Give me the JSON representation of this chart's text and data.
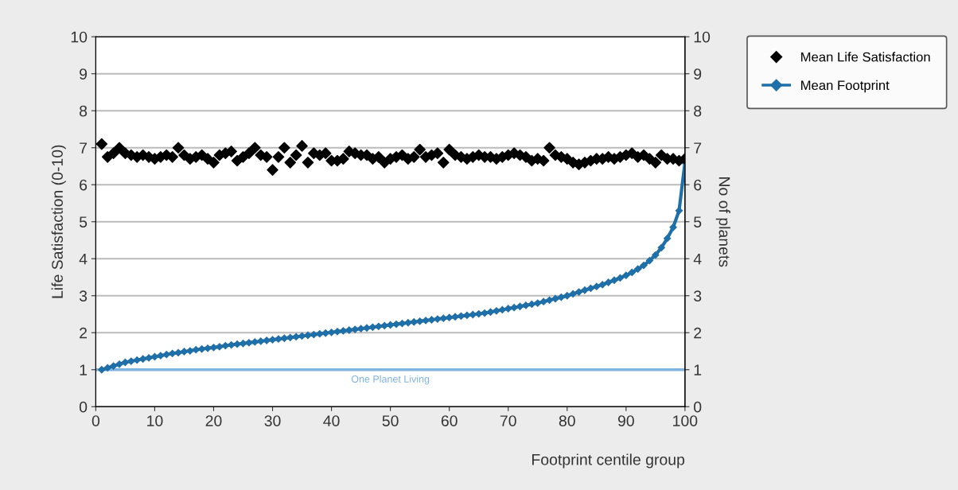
{
  "chart_data": {
    "type": "line",
    "xlabel": "Footprint centile group",
    "ylabel": "Life Satisfaction (0-10)",
    "y2label": "No of planets",
    "x": [
      1,
      2,
      3,
      4,
      5,
      6,
      7,
      8,
      9,
      10,
      11,
      12,
      13,
      14,
      15,
      16,
      17,
      18,
      19,
      20,
      21,
      22,
      23,
      24,
      25,
      26,
      27,
      28,
      29,
      30,
      31,
      32,
      33,
      34,
      35,
      36,
      37,
      38,
      39,
      40,
      41,
      42,
      43,
      44,
      45,
      46,
      47,
      48,
      49,
      50,
      51,
      52,
      53,
      54,
      55,
      56,
      57,
      58,
      59,
      60,
      61,
      62,
      63,
      64,
      65,
      66,
      67,
      68,
      69,
      70,
      71,
      72,
      73,
      74,
      75,
      76,
      77,
      78,
      79,
      80,
      81,
      82,
      83,
      84,
      85,
      86,
      87,
      88,
      89,
      90,
      91,
      92,
      93,
      94,
      95,
      96,
      97,
      98,
      99,
      100
    ],
    "xlim": [
      0,
      100
    ],
    "xticks": [
      0,
      10,
      20,
      30,
      40,
      50,
      60,
      70,
      80,
      90,
      100
    ],
    "ylim": [
      0,
      10
    ],
    "yticks": [
      0,
      1,
      2,
      3,
      4,
      5,
      6,
      7,
      8,
      9,
      10
    ],
    "y2lim": [
      0,
      10
    ],
    "y2ticks": [
      0,
      1,
      2,
      3,
      4,
      5,
      6,
      7,
      8,
      9,
      10
    ],
    "grid": "y",
    "legend": "top right",
    "marker": "diamond",
    "series": [
      {
        "name": "Mean Life Satisfaction",
        "type": "scatter",
        "color": "#000000",
        "values": [
          7.1,
          6.75,
          6.85,
          7.0,
          6.85,
          6.8,
          6.75,
          6.8,
          6.75,
          6.7,
          6.75,
          6.8,
          6.75,
          7.0,
          6.8,
          6.7,
          6.75,
          6.8,
          6.7,
          6.6,
          6.8,
          6.85,
          6.9,
          6.65,
          6.75,
          6.85,
          7.0,
          6.8,
          6.75,
          6.4,
          6.75,
          7.0,
          6.6,
          6.8,
          7.05,
          6.6,
          6.85,
          6.8,
          6.85,
          6.65,
          6.65,
          6.7,
          6.9,
          6.85,
          6.8,
          6.8,
          6.7,
          6.75,
          6.6,
          6.7,
          6.75,
          6.8,
          6.7,
          6.75,
          6.95,
          6.75,
          6.8,
          6.85,
          6.6,
          6.95,
          6.8,
          6.75,
          6.7,
          6.75,
          6.8,
          6.75,
          6.75,
          6.7,
          6.75,
          6.8,
          6.85,
          6.8,
          6.75,
          6.65,
          6.7,
          6.65,
          7.0,
          6.8,
          6.75,
          6.7,
          6.6,
          6.55,
          6.6,
          6.65,
          6.7,
          6.7,
          6.75,
          6.7,
          6.75,
          6.8,
          6.85,
          6.75,
          6.8,
          6.7,
          6.6,
          6.8,
          6.7,
          6.7,
          6.65,
          6.7
        ]
      },
      {
        "name": "Mean Footprint",
        "axis": "y2",
        "color": "#1f6fa8",
        "values": [
          1.0,
          1.05,
          1.1,
          1.15,
          1.2,
          1.23,
          1.26,
          1.29,
          1.32,
          1.35,
          1.38,
          1.41,
          1.44,
          1.46,
          1.49,
          1.51,
          1.54,
          1.56,
          1.58,
          1.6,
          1.62,
          1.65,
          1.67,
          1.69,
          1.71,
          1.73,
          1.75,
          1.77,
          1.79,
          1.81,
          1.83,
          1.85,
          1.87,
          1.89,
          1.91,
          1.93,
          1.95,
          1.97,
          1.99,
          2.01,
          2.03,
          2.05,
          2.07,
          2.09,
          2.11,
          2.13,
          2.15,
          2.17,
          2.19,
          2.21,
          2.23,
          2.25,
          2.27,
          2.29,
          2.31,
          2.33,
          2.35,
          2.37,
          2.39,
          2.41,
          2.43,
          2.45,
          2.47,
          2.49,
          2.51,
          2.53,
          2.56,
          2.59,
          2.62,
          2.65,
          2.68,
          2.71,
          2.74,
          2.77,
          2.8,
          2.84,
          2.88,
          2.92,
          2.96,
          3.0,
          3.05,
          3.1,
          3.15,
          3.2,
          3.25,
          3.3,
          3.36,
          3.42,
          3.48,
          3.55,
          3.63,
          3.72,
          3.82,
          3.95,
          4.1,
          4.3,
          4.55,
          4.85,
          5.3,
          6.6
        ]
      }
    ],
    "ref_lines": [
      {
        "axis": "y2",
        "value": 1,
        "label": "One Planet Living",
        "color": "#7fb3e0"
      }
    ]
  }
}
